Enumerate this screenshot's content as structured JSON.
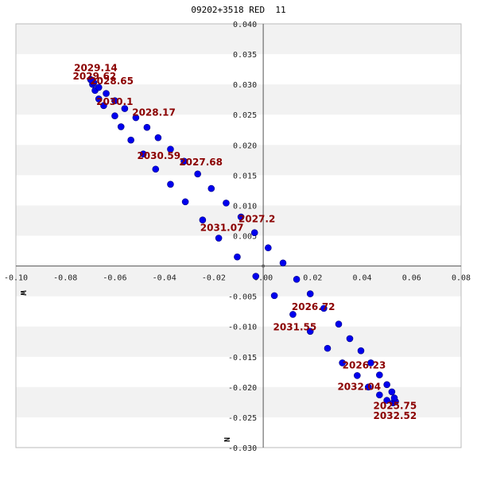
{
  "chart_data": {
    "type": "scatter",
    "title": "09202+3518 RED  11",
    "x_axis_letter": "W",
    "y_axis_letter": "N",
    "xlim": [
      -0.1,
      0.08
    ],
    "ylim": [
      -0.03,
      0.04
    ],
    "x_ticks": [
      "-0.10",
      "-0.08",
      "-0.06",
      "-0.04",
      "-0.02",
      "0.00",
      "0.02",
      "0.04",
      "0.06",
      "0.08"
    ],
    "x_tick_values": [
      -0.1,
      -0.08,
      -0.06,
      -0.04,
      -0.02,
      0.0,
      0.02,
      0.04,
      0.06,
      0.08
    ],
    "y_ticks": [
      "0.040",
      "0.035",
      "0.030",
      "0.025",
      "0.020",
      "0.015",
      "0.010",
      "0.005",
      "-0.005",
      "-0.010",
      "-0.015",
      "-0.020",
      "-0.025",
      "-0.030"
    ],
    "y_tick_values": [
      0.04,
      0.035,
      0.03,
      0.025,
      0.02,
      0.015,
      0.01,
      0.005,
      -0.005,
      -0.01,
      -0.015,
      -0.02,
      -0.025,
      -0.03
    ],
    "grid": "alternating horizontal bands",
    "point_color": "#0000ee",
    "label_color": "#8b0000",
    "band_color": "#f2f2f2",
    "points": [
      {
        "x": -0.0698,
        "y": 0.0308
      },
      {
        "x": -0.069,
        "y": 0.03
      },
      {
        "x": -0.068,
        "y": 0.029
      },
      {
        "x": -0.0665,
        "y": 0.0276
      },
      {
        "x": -0.0645,
        "y": 0.0265
      },
      {
        "x": -0.06,
        "y": 0.0248
      },
      {
        "x": -0.0575,
        "y": 0.023
      },
      {
        "x": -0.0535,
        "y": 0.0208
      },
      {
        "x": -0.0485,
        "y": 0.0185
      },
      {
        "x": -0.0435,
        "y": 0.016
      },
      {
        "x": -0.0375,
        "y": 0.0135
      },
      {
        "x": -0.0315,
        "y": 0.0106
      },
      {
        "x": -0.0245,
        "y": 0.0076
      },
      {
        "x": -0.018,
        "y": 0.0046
      },
      {
        "x": -0.0105,
        "y": 0.0015
      },
      {
        "x": -0.003,
        "y": -0.0017
      },
      {
        "x": 0.0045,
        "y": -0.0049
      },
      {
        "x": 0.012,
        "y": -0.008
      },
      {
        "x": 0.019,
        "y": -0.0108
      },
      {
        "x": 0.026,
        "y": -0.0136
      },
      {
        "x": 0.032,
        "y": -0.016
      },
      {
        "x": 0.038,
        "y": -0.0181
      },
      {
        "x": 0.0425,
        "y": -0.02
      },
      {
        "x": 0.047,
        "y": -0.0213
      },
      {
        "x": 0.05,
        "y": -0.0222
      },
      {
        "x": 0.0525,
        "y": -0.0226
      },
      {
        "x": 0.0535,
        "y": -0.0224
      },
      {
        "x": 0.053,
        "y": -0.0218
      },
      {
        "x": 0.052,
        "y": -0.0208
      },
      {
        "x": 0.05,
        "y": -0.0196
      },
      {
        "x": 0.047,
        "y": -0.018
      },
      {
        "x": 0.0435,
        "y": -0.016
      },
      {
        "x": 0.0395,
        "y": -0.014
      },
      {
        "x": 0.035,
        "y": -0.012
      },
      {
        "x": 0.0305,
        "y": -0.0096
      },
      {
        "x": 0.0245,
        "y": -0.007
      },
      {
        "x": 0.019,
        "y": -0.0046
      },
      {
        "x": 0.0135,
        "y": -0.0022
      },
      {
        "x": 0.008,
        "y": 0.0005
      },
      {
        "x": 0.002,
        "y": 0.003
      },
      {
        "x": -0.0035,
        "y": 0.0055
      },
      {
        "x": -0.009,
        "y": 0.0081
      },
      {
        "x": -0.015,
        "y": 0.0104
      },
      {
        "x": -0.021,
        "y": 0.0128
      },
      {
        "x": -0.0265,
        "y": 0.0152
      },
      {
        "x": -0.032,
        "y": 0.0173
      },
      {
        "x": -0.0375,
        "y": 0.0193
      },
      {
        "x": -0.0425,
        "y": 0.0212
      },
      {
        "x": -0.047,
        "y": 0.0229
      },
      {
        "x": -0.0515,
        "y": 0.0245
      },
      {
        "x": -0.056,
        "y": 0.026
      },
      {
        "x": -0.06,
        "y": 0.0273
      },
      {
        "x": -0.0635,
        "y": 0.0285
      },
      {
        "x": -0.0665,
        "y": 0.0295
      },
      {
        "x": -0.0685,
        "y": 0.0303
      },
      {
        "x": -0.0695,
        "y": 0.0307
      }
    ],
    "date_labels": [
      {
        "text": "2029.14",
        "x": -0.0765,
        "y": 0.0322
      },
      {
        "text": "2029.62",
        "x": -0.077,
        "y": 0.0308
      },
      {
        "text": "2028.65",
        "x": -0.07,
        "y": 0.03
      },
      {
        "text": "2030.1",
        "x": -0.0675,
        "y": 0.0266
      },
      {
        "text": "2028.17",
        "x": -0.053,
        "y": 0.0248
      },
      {
        "text": "2030.59",
        "x": -0.051,
        "y": 0.0177
      },
      {
        "text": "2027.68",
        "x": -0.034,
        "y": 0.0166
      },
      {
        "text": "2027.2",
        "x": -0.01,
        "y": 0.0072
      },
      {
        "text": "2031.07",
        "x": -0.0255,
        "y": 0.0058
      },
      {
        "text": "2026.72",
        "x": 0.0115,
        "y": -0.0073
      },
      {
        "text": "2031.55",
        "x": 0.004,
        "y": -0.0106
      },
      {
        "text": "2026.23",
        "x": 0.032,
        "y": -0.0169
      },
      {
        "text": "2032.04",
        "x": 0.03,
        "y": -0.0205
      },
      {
        "text": "2025.75",
        "x": 0.0445,
        "y": -0.0236
      },
      {
        "text": "2032.52",
        "x": 0.0445,
        "y": -0.0253
      }
    ]
  }
}
